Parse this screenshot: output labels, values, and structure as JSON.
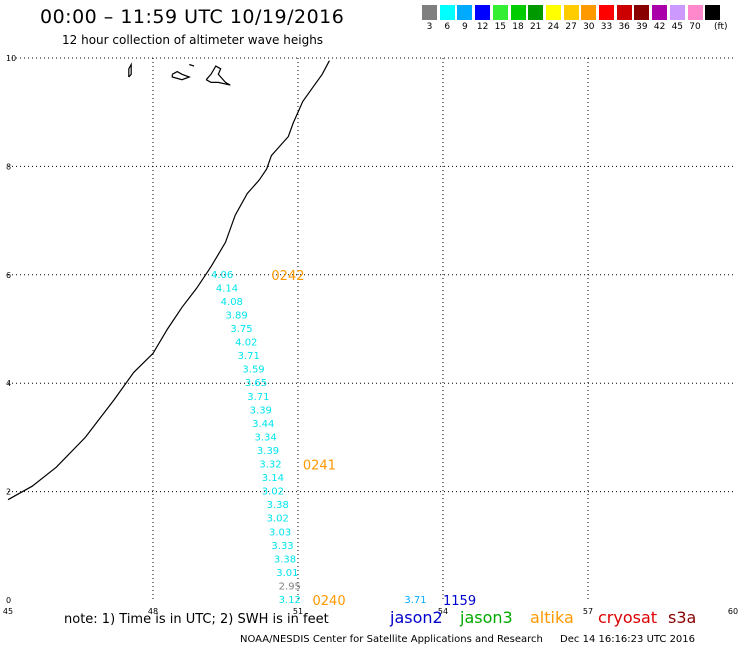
{
  "header": {
    "title": "00:00 – 11:59 UTC 10/19/2016",
    "subtitle": "12 hour collection of altimeter wave heighs"
  },
  "legend": {
    "unit": "(ft)",
    "items": [
      {
        "label": "3",
        "color": "#7f7f7f"
      },
      {
        "label": "6",
        "color": "#00ffff"
      },
      {
        "label": "9",
        "color": "#00aaff"
      },
      {
        "label": "12",
        "color": "#0000ff"
      },
      {
        "label": "15",
        "color": "#33ee33"
      },
      {
        "label": "18",
        "color": "#00cc00"
      },
      {
        "label": "21",
        "color": "#009900"
      },
      {
        "label": "24",
        "color": "#ffff00"
      },
      {
        "label": "27",
        "color": "#ffcc00"
      },
      {
        "label": "30",
        "color": "#ff9900"
      },
      {
        "label": "33",
        "color": "#ff0000"
      },
      {
        "label": "36",
        "color": "#cc0000"
      },
      {
        "label": "39",
        "color": "#880000"
      },
      {
        "label": "42",
        "color": "#aa00aa"
      },
      {
        "label": "45",
        "color": "#cc99ff"
      },
      {
        "label": "70",
        "color": "#ff88cc"
      },
      {
        "label": "",
        "color": "#000000"
      }
    ]
  },
  "map": {
    "lon_ticks": [
      "45",
      "48",
      "51",
      "54",
      "57",
      "60"
    ],
    "lat_ticks": [
      "0",
      "2",
      "4",
      "6",
      "8",
      "10"
    ],
    "grid": "dotted",
    "track": {
      "satellite": "altika",
      "color": "#00e5ee",
      "readings": [
        {
          "label": "4.06",
          "lon": 49.2,
          "lat": 6.0
        },
        {
          "label": "4.14",
          "lon": 49.3,
          "lat": 5.75
        },
        {
          "label": "4.08",
          "lon": 49.4,
          "lat": 5.5
        },
        {
          "label": "3.89",
          "lon": 49.5,
          "lat": 5.25
        },
        {
          "label": "3.75",
          "lon": 49.6,
          "lat": 5.0
        },
        {
          "label": "4.02",
          "lon": 49.7,
          "lat": 4.75
        },
        {
          "label": "3.71",
          "lon": 49.75,
          "lat": 4.5
        },
        {
          "label": "3.59",
          "lon": 49.85,
          "lat": 4.25
        },
        {
          "label": "3.65",
          "lon": 49.9,
          "lat": 4.0
        },
        {
          "label": "3.71",
          "lon": 49.95,
          "lat": 3.75
        },
        {
          "label": "3.39",
          "lon": 50.0,
          "lat": 3.5
        },
        {
          "label": "3.44",
          "lon": 50.05,
          "lat": 3.25
        },
        {
          "label": "3.34",
          "lon": 50.1,
          "lat": 3.0
        },
        {
          "label": "3.39",
          "lon": 50.15,
          "lat": 2.75
        },
        {
          "label": "3.32",
          "lon": 50.2,
          "lat": 2.5
        },
        {
          "label": "3.14",
          "lon": 50.25,
          "lat": 2.25
        },
        {
          "label": "3.02",
          "lon": 50.25,
          "lat": 2.0
        },
        {
          "label": "3.38",
          "lon": 50.35,
          "lat": 1.75
        },
        {
          "label": "3.02",
          "lon": 50.35,
          "lat": 1.5
        },
        {
          "label": "3.03",
          "lon": 50.4,
          "lat": 1.25
        },
        {
          "label": "3.33",
          "lon": 50.45,
          "lat": 1.0
        },
        {
          "label": "3.38",
          "lon": 50.5,
          "lat": 0.75
        },
        {
          "label": "3.01",
          "lon": 50.55,
          "lat": 0.5
        },
        {
          "label": "2.95",
          "lon": 50.6,
          "lat": 0.25,
          "color": "#808080"
        },
        {
          "label": "3.12",
          "lon": 50.6,
          "lat": 0.0
        }
      ]
    },
    "extra_reading": {
      "label": "3.71",
      "lon": 53.2,
      "lat": 0.0,
      "color": "#00aaff"
    },
    "time_labels": [
      {
        "label": "0242",
        "lon": 50.45,
        "lat": 6.0,
        "color": "#ff9900"
      },
      {
        "label": "0241",
        "lon": 51.1,
        "lat": 2.5,
        "color": "#ff9900"
      },
      {
        "label": "0240",
        "lon": 51.3,
        "lat": 0.0,
        "color": "#ff9900"
      },
      {
        "label": "1159",
        "lon": 54.0,
        "lat": 0.0,
        "color": "#0000cc"
      }
    ],
    "coastline": [
      [
        45.0,
        1.85
      ],
      [
        45.5,
        2.1
      ],
      [
        46.0,
        2.45
      ],
      [
        46.6,
        3.0
      ],
      [
        47.2,
        3.7
      ],
      [
        47.6,
        4.2
      ],
      [
        48.0,
        4.55
      ],
      [
        48.3,
        5.0
      ],
      [
        48.6,
        5.4
      ],
      [
        48.9,
        5.75
      ],
      [
        49.2,
        6.15
      ],
      [
        49.5,
        6.6
      ],
      [
        49.7,
        7.1
      ],
      [
        49.95,
        7.5
      ],
      [
        50.2,
        7.75
      ],
      [
        50.35,
        7.95
      ],
      [
        50.45,
        8.2
      ],
      [
        50.6,
        8.35
      ],
      [
        50.8,
        8.55
      ],
      [
        50.9,
        8.8
      ],
      [
        51.0,
        9.0
      ],
      [
        51.1,
        9.2
      ],
      [
        51.3,
        9.45
      ],
      [
        51.5,
        9.7
      ],
      [
        51.65,
        9.95
      ]
    ],
    "islands": [
      [
        [
          47.5,
          9.65
        ],
        [
          47.5,
          9.8
        ],
        [
          47.55,
          9.88
        ],
        [
          47.55,
          9.7
        ],
        [
          47.5,
          9.65
        ]
      ],
      [
        [
          48.4,
          9.7
        ],
        [
          48.5,
          9.75
        ],
        [
          48.6,
          9.7
        ],
        [
          48.75,
          9.65
        ],
        [
          48.6,
          9.6
        ],
        [
          48.4,
          9.65
        ],
        [
          48.4,
          9.7
        ]
      ],
      [
        [
          48.75,
          9.88
        ],
        [
          48.85,
          9.85
        ]
      ],
      [
        [
          49.1,
          9.6
        ],
        [
          49.2,
          9.7
        ],
        [
          49.3,
          9.85
        ],
        [
          49.4,
          9.8
        ],
        [
          49.35,
          9.7
        ],
        [
          49.5,
          9.55
        ],
        [
          49.6,
          9.5
        ],
        [
          49.35,
          9.55
        ],
        [
          49.2,
          9.55
        ],
        [
          49.1,
          9.6
        ]
      ]
    ]
  },
  "satellites": [
    {
      "name": "jason2",
      "color": "#0000cc"
    },
    {
      "name": "jason3",
      "color": "#00aa00"
    },
    {
      "name": "altika",
      "color": "#ff9900"
    },
    {
      "name": "cryosat",
      "color": "#dd0000"
    },
    {
      "name": "s3a",
      "color": "#880000"
    }
  ],
  "footer": {
    "note": "note: 1) Time is in UTC; 2) SWH is in feet",
    "credit": "NOAA/NESDIS Center for Satellite Applications and Research",
    "timestamp": "Dec 14 16:16:23 UTC 2016"
  }
}
